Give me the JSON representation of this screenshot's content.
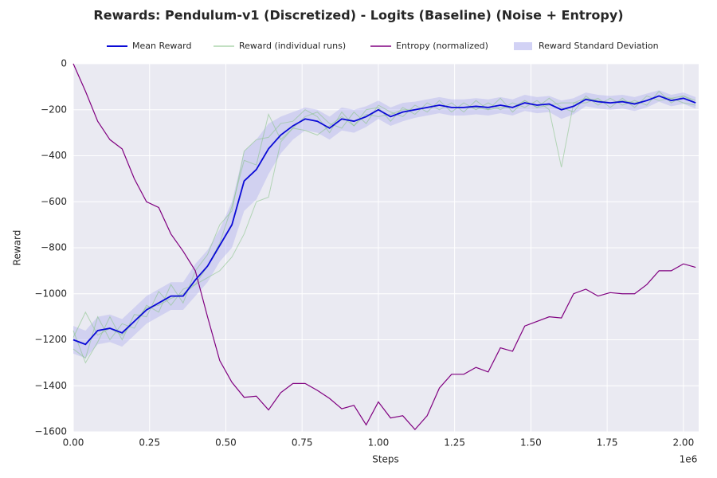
{
  "chart_data": {
    "type": "line",
    "title": "Rewards: Pendulum-v1 (Discretized) - Logits (Baseline) (Noise + Entropy)",
    "xlabel": "Steps",
    "ylabel": "Reward",
    "x_offset_label": "1e6",
    "grid": true,
    "xlim": [
      0,
      2050000
    ],
    "ylim": [
      -1600,
      0
    ],
    "xticks": [
      {
        "value": 0,
        "label": "0.00"
      },
      {
        "value": 250000,
        "label": "0.25"
      },
      {
        "value": 500000,
        "label": "0.50"
      },
      {
        "value": 750000,
        "label": "0.75"
      },
      {
        "value": 1000000,
        "label": "1.00"
      },
      {
        "value": 1250000,
        "label": "1.25"
      },
      {
        "value": 1500000,
        "label": "1.50"
      },
      {
        "value": 1750000,
        "label": "1.75"
      },
      {
        "value": 2000000,
        "label": "2.00"
      }
    ],
    "yticks": [
      {
        "value": -1600,
        "label": "−1600"
      },
      {
        "value": -1400,
        "label": "−1400"
      },
      {
        "value": -1200,
        "label": "−1200"
      },
      {
        "value": -1000,
        "label": "−1000"
      },
      {
        "value": -800,
        "label": "−800"
      },
      {
        "value": -600,
        "label": "−600"
      },
      {
        "value": -400,
        "label": "−400"
      },
      {
        "value": -200,
        "label": "−200"
      },
      0
    ],
    "x": [
      0,
      40000,
      80000,
      120000,
      160000,
      200000,
      240000,
      280000,
      320000,
      360000,
      400000,
      440000,
      480000,
      520000,
      560000,
      600000,
      640000,
      680000,
      720000,
      760000,
      800000,
      840000,
      880000,
      920000,
      960000,
      1000000,
      1040000,
      1080000,
      1120000,
      1160000,
      1200000,
      1240000,
      1280000,
      1320000,
      1360000,
      1400000,
      1440000,
      1480000,
      1520000,
      1560000,
      1600000,
      1640000,
      1680000,
      1720000,
      1760000,
      1800000,
      1840000,
      1880000,
      1920000,
      1960000,
      2000000,
      2040000
    ],
    "series": [
      {
        "name": "Mean Reward",
        "color": "#0a0ad6",
        "values": [
          -1200,
          -1220,
          -1160,
          -1150,
          -1170,
          -1120,
          -1070,
          -1040,
          -1010,
          -1010,
          -940,
          -880,
          -790,
          -700,
          -510,
          -460,
          -370,
          -310,
          -270,
          -240,
          -250,
          -280,
          -240,
          -250,
          -230,
          -200,
          -230,
          -210,
          -200,
          -190,
          -180,
          -190,
          -190,
          -185,
          -190,
          -180,
          -190,
          -170,
          -180,
          -175,
          -200,
          -185,
          -155,
          -165,
          -170,
          -165,
          -175,
          -160,
          -140,
          -160,
          -150,
          -170
        ]
      },
      {
        "name": "Reward (individual runs)",
        "color": "#8cc58c",
        "runs": [
          [
            -1240,
            -1280,
            -1100,
            -1200,
            -1130,
            -1150,
            -1050,
            -1080,
            -960,
            -1040,
            -900,
            -830,
            -700,
            -640,
            -380,
            -330,
            -320,
            -260,
            -250,
            -200,
            -230,
            -300,
            -210,
            -270,
            -200,
            -190,
            -250,
            -190,
            -220,
            -170,
            -200,
            -170,
            -210,
            -160,
            -200,
            -150,
            -210,
            -160,
            -190,
            -150,
            -190,
            -210,
            -140,
            -180,
            -150,
            -180,
            -160,
            -180,
            -120,
            -170,
            -140,
            -160
          ],
          [
            -1160,
            -1300,
            -1210,
            -1100,
            -1200,
            -1090,
            -1100,
            -990,
            -1050,
            -980,
            -960,
            -930,
            -900,
            -840,
            -740,
            -600,
            -580,
            -340,
            -280,
            -230,
            -210,
            -260,
            -280,
            -210,
            -260,
            -180,
            -210,
            -230,
            -180,
            -210,
            -160,
            -210,
            -170,
            -200,
            -170,
            -200,
            -170,
            -190,
            -160,
            -200,
            -450,
            -170,
            -170,
            -150,
            -190,
            -150,
            -190,
            -140,
            -160,
            -150,
            -170,
            -180
          ],
          [
            -1190,
            -1080,
            -1180,
            -1150,
            -1180,
            -1120,
            -1060,
            -1050,
            -1020,
            -1000,
            -960,
            -880,
            -780,
            -620,
            -420,
            -440,
            -220,
            -330,
            -280,
            -290,
            -310,
            -270,
            -230,
            -270,
            -220,
            -230,
            -220,
            -200,
            -200,
            -190,
            -180,
            -190,
            -190,
            -190,
            -200,
            -190,
            -190,
            -160,
            -190,
            -180,
            -170,
            -170,
            -150,
            -160,
            -170,
            -160,
            -170,
            -160,
            -140,
            -150,
            -140,
            -170
          ]
        ]
      },
      {
        "name": "Entropy (normalized)",
        "color": "#800080",
        "values": [
          0,
          -120,
          -250,
          -330,
          -370,
          -500,
          -600,
          -625,
          -740,
          -815,
          -900,
          -1100,
          -1290,
          -1385,
          -1450,
          -1445,
          -1505,
          -1430,
          -1390,
          -1390,
          -1420,
          -1455,
          -1500,
          -1485,
          -1570,
          -1470,
          -1540,
          -1530,
          -1590,
          -1530,
          -1410,
          -1350,
          -1350,
          -1320,
          -1340,
          -1235,
          -1250,
          -1140,
          -1120,
          -1100,
          -1105,
          -1000,
          -980,
          -1010,
          -995,
          -1000,
          -1000,
          -960,
          -900,
          -900,
          -870,
          -885
        ]
      },
      {
        "name": "Reward Standard Deviation",
        "color": "#b4b4ee",
        "upper": [
          -1140,
          -1160,
          -1100,
          -1090,
          -1110,
          -1060,
          -1010,
          -980,
          -950,
          -950,
          -870,
          -810,
          -720,
          -600,
          -380,
          -330,
          -260,
          -230,
          -210,
          -190,
          -200,
          -230,
          -190,
          -200,
          -185,
          -160,
          -190,
          -170,
          -165,
          -155,
          -145,
          -155,
          -155,
          -150,
          -155,
          -145,
          -155,
          -135,
          -145,
          -140,
          -160,
          -150,
          -125,
          -135,
          -140,
          -135,
          -145,
          -130,
          -115,
          -135,
          -125,
          -145
        ],
        "lower": [
          -1260,
          -1280,
          -1220,
          -1210,
          -1230,
          -1180,
          -1130,
          -1100,
          -1070,
          -1070,
          -1010,
          -950,
          -860,
          -800,
          -640,
          -590,
          -480,
          -390,
          -330,
          -290,
          -300,
          -330,
          -290,
          -300,
          -275,
          -240,
          -270,
          -250,
          -235,
          -225,
          -215,
          -225,
          -225,
          -220,
          -225,
          -215,
          -225,
          -205,
          -215,
          -210,
          -240,
          -220,
          -185,
          -195,
          -200,
          -195,
          -205,
          -190,
          -165,
          -185,
          -175,
          -195
        ]
      }
    ]
  }
}
